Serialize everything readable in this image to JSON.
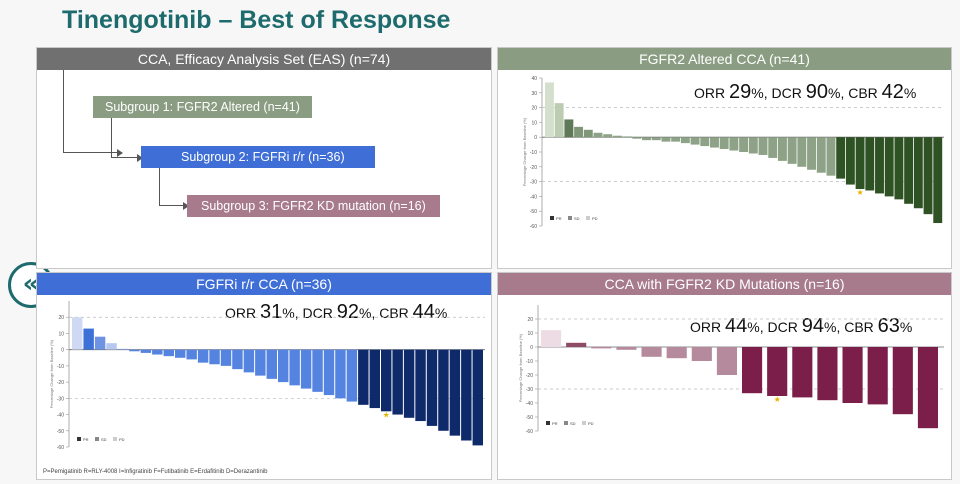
{
  "title": "Tinengotinib – Best of Response",
  "nav": {
    "back_glyph": "«"
  },
  "flow": {
    "header": "CCA, Efficacy Analysis Set (EAS) (n=74)",
    "sub1": "Subgroup 1: FGFR2 Altered (n=41)",
    "sub2": "Subgroup 2: FGFRi r/r (n=36)",
    "sub3": "Subgroup 3: FGFR2 KD mutation (n=16)"
  },
  "colors": {
    "grey": "#707070",
    "green": "#8a9d82",
    "blue": "#3f6fd6",
    "mauve": "#a77a8c",
    "teal": "#1d6b6d"
  },
  "panels": {
    "tr": {
      "header": "FGFR2 Altered CCA (n=41)",
      "orr_val": "29",
      "dcr_val": "90",
      "cbr_val": "42"
    },
    "bl": {
      "header": "FGFRi r/r CCA (n=36)",
      "orr_val": "31",
      "dcr_val": "92",
      "cbr_val": "44"
    },
    "br": {
      "header": "CCA with FGFR2 KD Mutations (n=16)",
      "orr_val": "44",
      "dcr_val": "94",
      "cbr_val": "63"
    }
  },
  "stat_labels": {
    "orr": "ORR",
    "dcr": "DCR",
    "cbr": "CBR",
    "pct": "%",
    "sep": ","
  },
  "footnote": "P=Pemigatinib  R=RLY-4008  I=Infigratinib  F=Futibatinib  E=Erdafitinib  D=Derazantinib",
  "chart_data": [
    {
      "type": "bar",
      "ylim": [
        -60,
        40
      ],
      "yticks": [
        40,
        30,
        20,
        10,
        0,
        -10,
        -20,
        -30,
        -40,
        -50,
        -60
      ],
      "ylabel": "Percentage Change from Baseline (%)",
      "values": [
        37,
        23,
        12,
        7,
        5,
        3,
        2,
        1,
        0,
        -1,
        -2,
        -2,
        -3,
        -3,
        -4,
        -5,
        -6,
        -7,
        -8,
        -9,
        -10,
        -11,
        -12,
        -14,
        -16,
        -18,
        -20,
        -22,
        -24,
        -26,
        -28,
        -32,
        -35,
        -36,
        -38,
        -40,
        -42,
        -45,
        -48,
        -52,
        -58
      ],
      "colors": [
        "#d4dfcd",
        "#bcccb2",
        "#5f7857",
        "#7f9776",
        "#7f9776",
        "#8da286",
        "#8da286",
        "#8da286",
        "#8da286",
        "#8da286",
        "#8da286",
        "#8da286",
        "#8da286",
        "#8da286",
        "#8da286",
        "#8da286",
        "#8da286",
        "#8da286",
        "#8da286",
        "#8da286",
        "#8da286",
        "#8da286",
        "#8da286",
        "#8da286",
        "#8da286",
        "#8da286",
        "#8da286",
        "#8da286",
        "#8da286",
        "#8da286",
        "#2f5225",
        "#2f5225",
        "#2f5225",
        "#2f5225",
        "#2f5225",
        "#2f5225",
        "#2f5225",
        "#2f5225",
        "#2f5225",
        "#2f5225",
        "#2f5225"
      ],
      "star_index": 32,
      "legend": [
        "PR",
        "SD",
        "PD"
      ]
    },
    {
      "type": "bar",
      "ylim": [
        -60,
        30
      ],
      "yticks": [
        20,
        10,
        0,
        -10,
        -20,
        -30,
        -40,
        -50,
        -60
      ],
      "ylabel": "Percentage Change from Baseline (%)",
      "values": [
        20,
        13,
        8,
        4,
        0,
        -1,
        -2,
        -3,
        -4,
        -5,
        -6,
        -8,
        -9,
        -10,
        -12,
        -14,
        -16,
        -18,
        -20,
        -22,
        -24,
        -26,
        -28,
        -30,
        -32,
        -34,
        -36,
        -38,
        -40,
        -42,
        -44,
        -47,
        -50,
        -53,
        -56,
        -59
      ],
      "colors": [
        "#cfd9f3",
        "#3e71d8",
        "#6f93e3",
        "#b7c8f0",
        "#8fabe9",
        "#5583e0",
        "#5583e0",
        "#5583e0",
        "#5583e0",
        "#5583e0",
        "#5583e0",
        "#5583e0",
        "#5583e0",
        "#5583e0",
        "#5583e0",
        "#5583e0",
        "#5583e0",
        "#5583e0",
        "#5583e0",
        "#5583e0",
        "#5583e0",
        "#5583e0",
        "#5583e0",
        "#5583e0",
        "#5583e0",
        "#0e2a6b",
        "#0e2a6b",
        "#0e2a6b",
        "#0e2a6b",
        "#0e2a6b",
        "#0e2a6b",
        "#0e2a6b",
        "#0e2a6b",
        "#0e2a6b",
        "#0e2a6b",
        "#0e2a6b"
      ],
      "star_index": 27,
      "legend": [
        "PR",
        "SD",
        "PD"
      ]
    },
    {
      "type": "bar",
      "ylim": [
        -60,
        30
      ],
      "yticks": [
        20,
        10,
        0,
        -10,
        -20,
        -30,
        -40,
        -50,
        -60
      ],
      "ylabel": "Percentage Change from Baseline (%)",
      "values": [
        12,
        3,
        -1,
        -2,
        -7,
        -8,
        -10,
        -20,
        -33,
        -35,
        -36,
        -38,
        -40,
        -41,
        -48,
        -58
      ],
      "colors": [
        "#eddce3",
        "#8f4a66",
        "#b58a9c",
        "#b58a9c",
        "#b58a9c",
        "#b58a9c",
        "#b58a9c",
        "#b58a9c",
        "#7b1f4a",
        "#7b1f4a",
        "#7b1f4a",
        "#7b1f4a",
        "#7b1f4a",
        "#7b1f4a",
        "#7b1f4a",
        "#7b1f4a"
      ],
      "star_index": 9,
      "legend": [
        "PR",
        "SD",
        "PD"
      ]
    }
  ]
}
